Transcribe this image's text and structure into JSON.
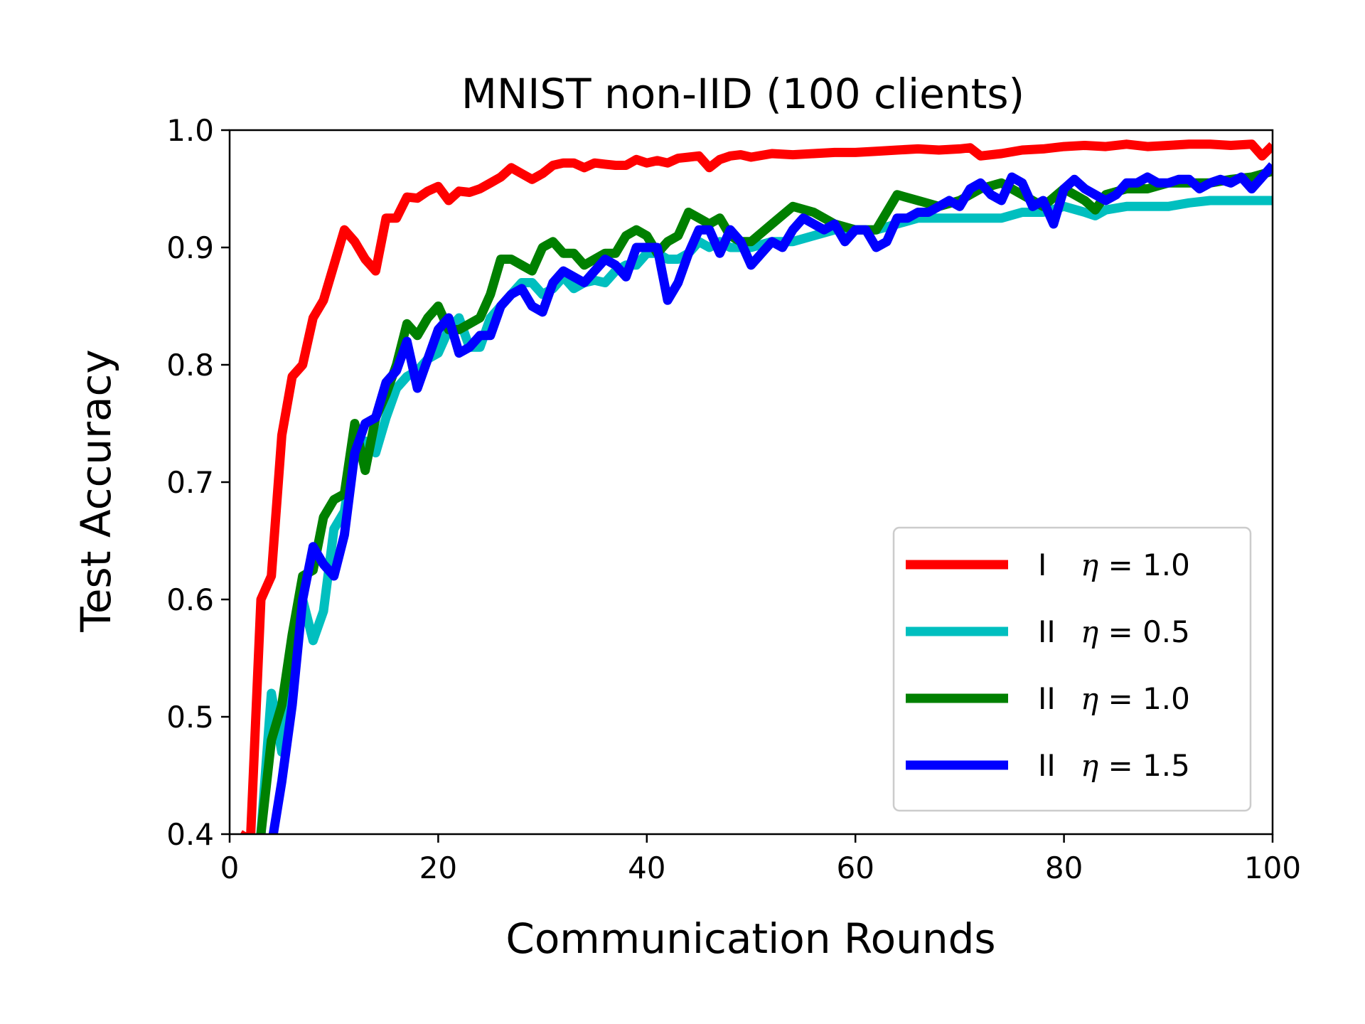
{
  "chart_data": {
    "type": "line",
    "title": "MNIST non-IID (100 clients)",
    "xlabel": "Communication Rounds",
    "ylabel": "Test Accuracy",
    "xlim": [
      0,
      100
    ],
    "ylim": [
      0.4,
      1.0
    ],
    "xticks": [
      0,
      20,
      40,
      60,
      80,
      100
    ],
    "yticks": [
      0.4,
      0.5,
      0.6,
      0.7,
      0.8,
      0.9,
      1.0
    ],
    "xtick_labels": [
      "0",
      "20",
      "40",
      "60",
      "80",
      "100"
    ],
    "ytick_labels": [
      "0.4",
      "0.5",
      "0.6",
      "0.7",
      "0.8",
      "0.9",
      "1.0"
    ],
    "grid": false,
    "legend_position": "lower-right",
    "series": [
      {
        "name": "I  η = 1.0",
        "legend_prefix": "I",
        "legend_value": "1.0",
        "color": "#ff0000",
        "x": [
          1,
          2,
          3,
          4,
          5,
          6,
          7,
          8,
          9,
          10,
          11,
          12,
          13,
          14,
          15,
          16,
          17,
          18,
          19,
          20,
          21,
          22,
          23,
          24,
          25,
          26,
          27,
          28,
          29,
          30,
          31,
          32,
          33,
          34,
          35,
          36,
          37,
          38,
          39,
          40,
          41,
          42,
          43,
          44,
          45,
          46,
          47,
          48,
          49,
          50,
          52,
          54,
          56,
          58,
          60,
          62,
          64,
          66,
          68,
          70,
          71,
          72,
          74,
          76,
          78,
          80,
          82,
          84,
          86,
          88,
          90,
          92,
          94,
          96,
          98,
          99,
          100
        ],
        "values": [
          0.4,
          0.395,
          0.6,
          0.62,
          0.74,
          0.79,
          0.8,
          0.84,
          0.855,
          0.885,
          0.915,
          0.905,
          0.89,
          0.88,
          0.925,
          0.925,
          0.943,
          0.942,
          0.948,
          0.952,
          0.94,
          0.948,
          0.947,
          0.95,
          0.955,
          0.96,
          0.968,
          0.963,
          0.958,
          0.963,
          0.97,
          0.972,
          0.972,
          0.968,
          0.972,
          0.971,
          0.97,
          0.97,
          0.975,
          0.972,
          0.974,
          0.972,
          0.976,
          0.977,
          0.978,
          0.968,
          0.975,
          0.978,
          0.979,
          0.977,
          0.98,
          0.979,
          0.98,
          0.981,
          0.981,
          0.982,
          0.983,
          0.984,
          0.983,
          0.984,
          0.985,
          0.978,
          0.98,
          0.983,
          0.984,
          0.986,
          0.987,
          0.986,
          0.988,
          0.986,
          0.987,
          0.988,
          0.988,
          0.987,
          0.988,
          0.978,
          0.987
        ]
      },
      {
        "name": "II η = 0.5",
        "legend_prefix": "II",
        "legend_value": "0.5",
        "color": "#00bfbf",
        "x": [
          3,
          4,
          5,
          6,
          7,
          8,
          9,
          10,
          11,
          12,
          13,
          14,
          15,
          16,
          17,
          18,
          19,
          20,
          21,
          22,
          23,
          24,
          25,
          26,
          27,
          28,
          29,
          30,
          31,
          32,
          33,
          34,
          35,
          36,
          37,
          38,
          39,
          40,
          41,
          42,
          43,
          44,
          45,
          46,
          47,
          48,
          49,
          50,
          52,
          54,
          56,
          58,
          60,
          62,
          64,
          66,
          68,
          70,
          72,
          74,
          76,
          78,
          80,
          82,
          83,
          84,
          86,
          88,
          90,
          92,
          94,
          96,
          98,
          100
        ],
        "values": [
          0.4,
          0.52,
          0.47,
          0.54,
          0.6,
          0.565,
          0.59,
          0.66,
          0.675,
          0.73,
          0.735,
          0.725,
          0.755,
          0.78,
          0.79,
          0.795,
          0.805,
          0.81,
          0.83,
          0.84,
          0.815,
          0.815,
          0.84,
          0.85,
          0.86,
          0.87,
          0.87,
          0.86,
          0.865,
          0.875,
          0.865,
          0.87,
          0.872,
          0.87,
          0.88,
          0.885,
          0.885,
          0.895,
          0.895,
          0.89,
          0.89,
          0.895,
          0.905,
          0.9,
          0.905,
          0.9,
          0.9,
          0.9,
          0.905,
          0.905,
          0.91,
          0.915,
          0.915,
          0.915,
          0.92,
          0.925,
          0.925,
          0.925,
          0.925,
          0.925,
          0.93,
          0.93,
          0.935,
          0.93,
          0.927,
          0.932,
          0.935,
          0.935,
          0.935,
          0.938,
          0.94,
          0.94,
          0.94,
          0.94
        ]
      },
      {
        "name": "II η = 1.0",
        "legend_prefix": "II",
        "legend_value": "1.0",
        "color": "#008000",
        "x": [
          3,
          4,
          5,
          6,
          7,
          8,
          9,
          10,
          11,
          12,
          13,
          14,
          15,
          16,
          17,
          18,
          19,
          20,
          21,
          22,
          23,
          24,
          25,
          26,
          27,
          28,
          29,
          30,
          31,
          32,
          33,
          34,
          35,
          36,
          37,
          38,
          39,
          40,
          41,
          42,
          43,
          44,
          45,
          46,
          47,
          48,
          49,
          50,
          52,
          54,
          56,
          58,
          60,
          62,
          64,
          66,
          68,
          70,
          72,
          74,
          76,
          78,
          80,
          82,
          83,
          84,
          86,
          88,
          90,
          92,
          94,
          96,
          98,
          100
        ],
        "values": [
          0.4,
          0.48,
          0.51,
          0.57,
          0.62,
          0.625,
          0.67,
          0.685,
          0.69,
          0.75,
          0.71,
          0.755,
          0.775,
          0.8,
          0.835,
          0.825,
          0.84,
          0.85,
          0.83,
          0.83,
          0.835,
          0.84,
          0.86,
          0.89,
          0.89,
          0.885,
          0.88,
          0.9,
          0.905,
          0.895,
          0.895,
          0.885,
          0.89,
          0.895,
          0.895,
          0.91,
          0.915,
          0.91,
          0.895,
          0.905,
          0.91,
          0.93,
          0.925,
          0.92,
          0.925,
          0.91,
          0.905,
          0.905,
          0.92,
          0.935,
          0.93,
          0.92,
          0.915,
          0.915,
          0.945,
          0.94,
          0.935,
          0.94,
          0.95,
          0.955,
          0.945,
          0.935,
          0.95,
          0.94,
          0.932,
          0.945,
          0.95,
          0.95,
          0.955,
          0.955,
          0.955,
          0.958,
          0.96,
          0.965
        ]
      },
      {
        "name": "II η = 1.5",
        "legend_prefix": "II",
        "legend_value": "1.5",
        "color": "#0000ff",
        "x": [
          4,
          5,
          6,
          7,
          8,
          9,
          10,
          11,
          12,
          13,
          14,
          15,
          16,
          17,
          18,
          19,
          20,
          21,
          22,
          23,
          24,
          25,
          26,
          27,
          28,
          29,
          30,
          31,
          32,
          33,
          34,
          35,
          36,
          37,
          38,
          39,
          40,
          41,
          42,
          43,
          44,
          45,
          46,
          47,
          48,
          49,
          50,
          51,
          52,
          53,
          54,
          55,
          56,
          57,
          58,
          59,
          60,
          61,
          62,
          63,
          64,
          65,
          66,
          67,
          68,
          69,
          70,
          71,
          72,
          73,
          74,
          75,
          76,
          77,
          78,
          79,
          80,
          81,
          82,
          83,
          84,
          85,
          86,
          87,
          88,
          89,
          90,
          91,
          92,
          93,
          94,
          95,
          96,
          97,
          98,
          99,
          100
        ],
        "values": [
          0.39,
          0.445,
          0.51,
          0.6,
          0.645,
          0.63,
          0.62,
          0.655,
          0.725,
          0.75,
          0.755,
          0.785,
          0.795,
          0.82,
          0.78,
          0.805,
          0.83,
          0.84,
          0.81,
          0.815,
          0.825,
          0.825,
          0.85,
          0.86,
          0.865,
          0.85,
          0.845,
          0.87,
          0.88,
          0.875,
          0.87,
          0.88,
          0.89,
          0.885,
          0.875,
          0.9,
          0.9,
          0.9,
          0.855,
          0.87,
          0.895,
          0.915,
          0.915,
          0.895,
          0.915,
          0.905,
          0.885,
          0.895,
          0.905,
          0.9,
          0.915,
          0.925,
          0.92,
          0.915,
          0.92,
          0.905,
          0.915,
          0.915,
          0.9,
          0.905,
          0.925,
          0.925,
          0.93,
          0.93,
          0.935,
          0.94,
          0.935,
          0.95,
          0.955,
          0.945,
          0.94,
          0.96,
          0.955,
          0.935,
          0.94,
          0.92,
          0.95,
          0.958,
          0.95,
          0.945,
          0.94,
          0.945,
          0.955,
          0.955,
          0.96,
          0.955,
          0.955,
          0.958,
          0.958,
          0.95,
          0.955,
          0.958,
          0.955,
          0.96,
          0.95,
          0.96,
          0.97
        ]
      }
    ]
  }
}
